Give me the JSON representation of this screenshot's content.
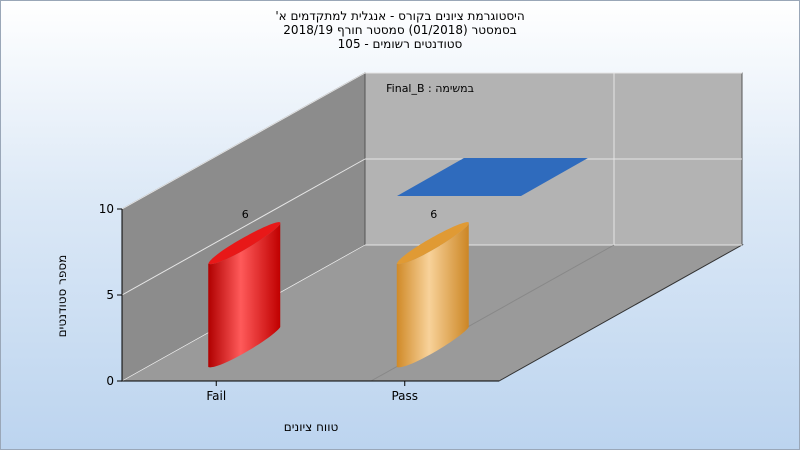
{
  "chart_data": {
    "type": "bar",
    "title_lines": [
      "היסטוגרמת ציונים בקורס - אנגלית למתקדמים א'",
      "בסמסטר (01/2018) סמסטר חורף 2018/19",
      "סטודנטים רשומים - 105"
    ],
    "xlabel": "טווח ציונים",
    "ylabel": "מספר סטודנטים",
    "categories": [
      "Fail",
      "Pass"
    ],
    "series": [
      {
        "values": [
          6,
          6
        ]
      }
    ],
    "data_labels": [
      "6",
      "6"
    ],
    "bar_colors": [
      "#e81818",
      "#e09a34"
    ],
    "ylim": [
      0,
      10
    ],
    "yticks": [
      "0",
      "5",
      "10"
    ],
    "legend": {
      "label": "Final_B : במשימה",
      "placement": "top-right",
      "marker_color": "#2f6bbd"
    },
    "grid": true,
    "projection": "3d-oblique",
    "colors": {
      "background_top": "#ffffff",
      "background_bottom": "#bcd4ef",
      "back_wall": "#b3b3b3",
      "left_wall": "#8c8c8c",
      "floor": "#9a9a9a"
    }
  }
}
